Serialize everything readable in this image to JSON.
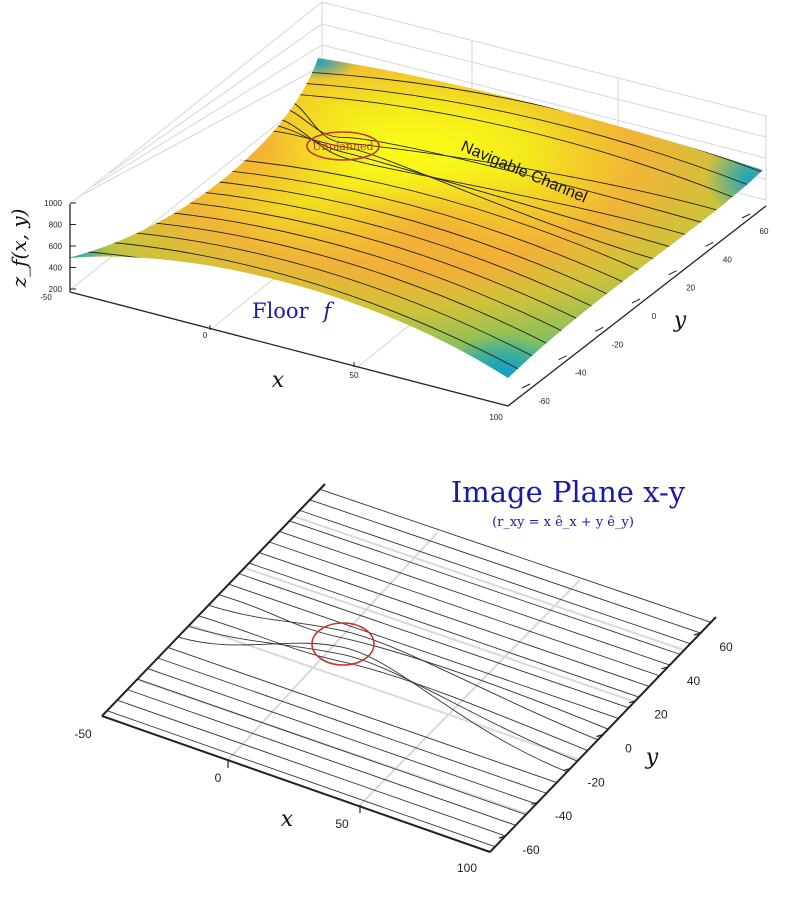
{
  "top_plot": {
    "z_label": "z_f(x, y)",
    "x_label": "x",
    "y_label": "y",
    "floor_label": "Floor",
    "floor_symbol": "f",
    "channel_label": "Navigable Channel",
    "obstacle_label": "Unplanned",
    "x_ticks": [
      "-50",
      "0",
      "50",
      "100"
    ],
    "y_ticks": [
      "-60",
      "-40",
      "-20",
      "0",
      "20",
      "40",
      "60"
    ],
    "z_ticks": [
      "200",
      "400",
      "600",
      "800",
      "1000"
    ],
    "colors": {
      "label_blue": "#1a1aa6",
      "obstacle_red": "#c0392b",
      "surface_peak": "#f3f016",
      "surface_edge": "#19a6c1"
    }
  },
  "bottom_plot": {
    "title": "Image Plane x-y",
    "subtitle": "(r_xy = x ê_x + y ê_y)",
    "x_label": "x",
    "y_label": "y",
    "x_ticks": [
      "-50",
      "0",
      "50",
      "100"
    ],
    "y_ticks": [
      "-60",
      "-40",
      "-20",
      "0",
      "20",
      "40",
      "60"
    ],
    "colors": {
      "title_blue": "#1a1aa6",
      "obstacle_red": "#c0392b"
    }
  }
}
